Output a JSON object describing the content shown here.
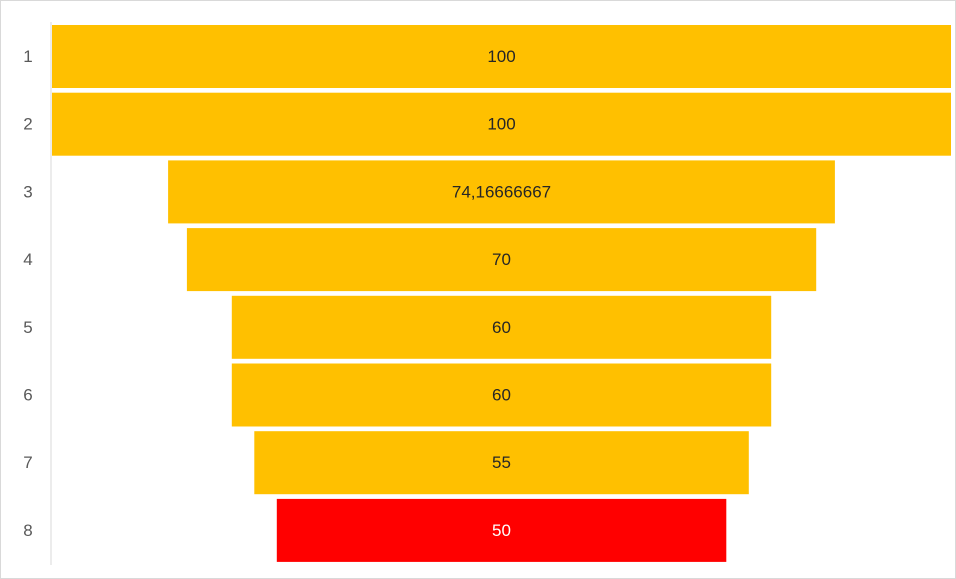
{
  "chart_data": {
    "type": "bar",
    "orientation": "horizontal-funnel",
    "title": "",
    "xlabel": "",
    "ylabel": "",
    "categories": [
      "1",
      "2",
      "3",
      "4",
      "5",
      "6",
      "7",
      "8"
    ],
    "values": [
      100,
      100,
      74.16666667,
      70,
      60,
      60,
      55,
      50
    ],
    "data_labels": [
      "100",
      "100",
      "74,16666667",
      "70",
      "60",
      "60",
      "55",
      "50"
    ],
    "xlim": [
      0,
      100
    ],
    "grid": false,
    "legend": "none",
    "colors": {
      "default_bar": "#FFC000",
      "highlight_bar": "#FF0000",
      "label_on_default": "#262626",
      "label_on_highlight": "#FFFFFF"
    },
    "highlight_index": 7
  }
}
